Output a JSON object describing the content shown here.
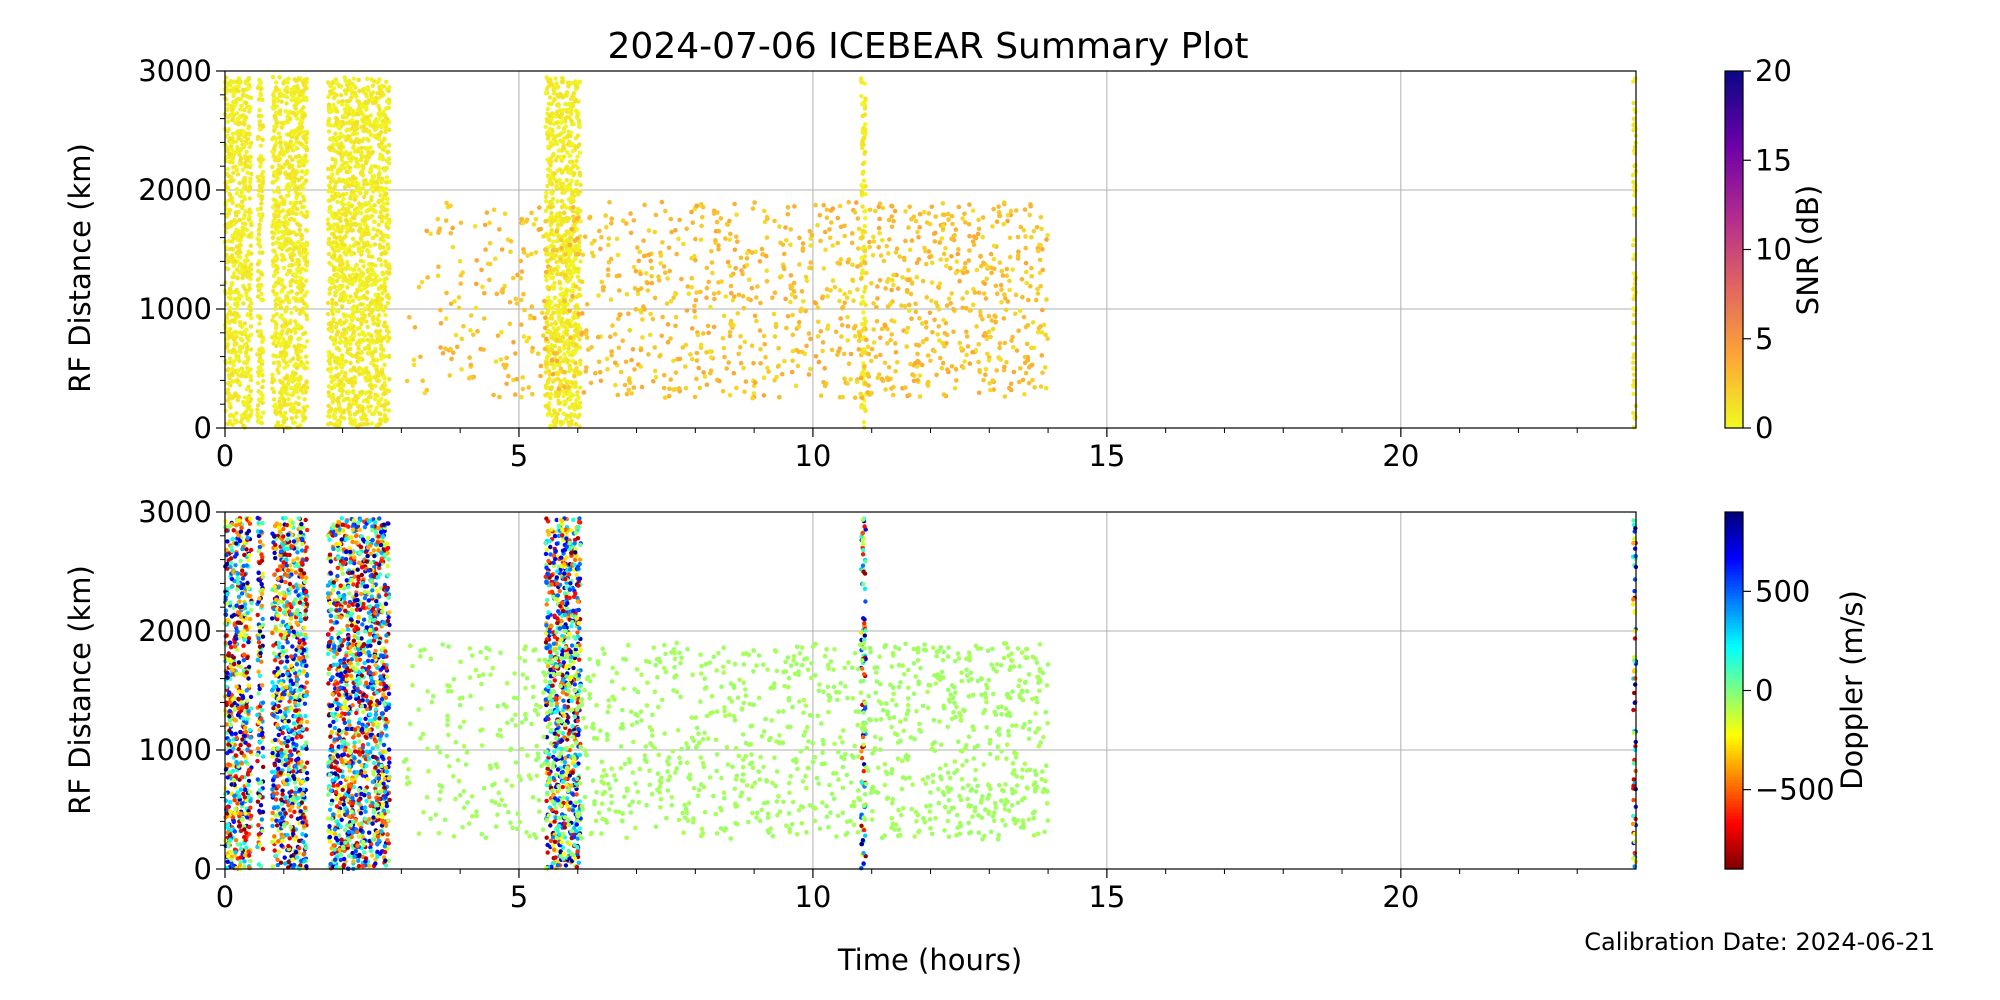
{
  "title": "2024-07-06 ICEBEAR Summary Plot",
  "xlabel": "Time (hours)",
  "footer": "Calibration Date: 2024-06-21",
  "chart_data": [
    {
      "type": "scatter",
      "title": "2024-07-06 ICEBEAR Summary Plot",
      "xlabel": "",
      "ylabel": "RF Distance (km)",
      "xlim": [
        0,
        24
      ],
      "ylim": [
        0,
        3000
      ],
      "xticks": [
        "0",
        "5",
        "10",
        "15",
        "20"
      ],
      "yticks": [
        "0",
        "1000",
        "2000",
        "3000"
      ],
      "grid": true,
      "color_by": "SNR",
      "colorbar": {
        "label": "SNR (dB)",
        "range": [
          0,
          20
        ],
        "ticks": [
          "0",
          "5",
          "10",
          "15",
          "20"
        ],
        "colormap": "plasma_r",
        "colors": [
          "#f0f921",
          "#fca636",
          "#e16462",
          "#b12a90",
          "#6a00a8",
          "#0d0887"
        ]
      },
      "dense_bands": [
        {
          "x": [
            0.0,
            0.45
          ],
          "y": [
            0,
            2950
          ]
        },
        {
          "x": [
            0.55,
            0.65
          ],
          "y": [
            0,
            2950
          ]
        },
        {
          "x": [
            0.8,
            1.4
          ],
          "y": [
            0,
            2950
          ]
        },
        {
          "x": [
            1.75,
            2.8
          ],
          "y": [
            0,
            2950
          ]
        },
        {
          "x": [
            5.45,
            5.85
          ],
          "y": [
            0,
            2950
          ]
        },
        {
          "x": [
            5.85,
            6.05
          ],
          "y": [
            0,
            2950
          ]
        },
        {
          "x": [
            10.82,
            10.9
          ],
          "y": [
            0,
            2950
          ]
        },
        {
          "x": [
            23.95,
            24.0
          ],
          "y": [
            0,
            2950
          ]
        }
      ],
      "scatter_region": {
        "x": [
          3.0,
          14.0
        ],
        "y": [
          250,
          1900
        ],
        "typical_snr_db": 2
      }
    },
    {
      "type": "scatter",
      "title": "",
      "xlabel": "Time (hours)",
      "ylabel": "RF Distance (km)",
      "xlim": [
        0,
        24
      ],
      "ylim": [
        0,
        3000
      ],
      "xticks": [
        "0",
        "5",
        "10",
        "15",
        "20"
      ],
      "yticks": [
        "0",
        "1000",
        "2000",
        "3000"
      ],
      "grid": true,
      "color_by": "Doppler",
      "colorbar": {
        "label": "Doppler (m/s)",
        "range": [
          -900,
          900
        ],
        "ticks": [
          "−500",
          "0",
          "500"
        ],
        "tick_values": [
          -500,
          0,
          500
        ],
        "colormap": "jet_r",
        "colors": [
          "#800000",
          "#ff0000",
          "#ff8000",
          "#ffff00",
          "#80ff80",
          "#00ffff",
          "#0080ff",
          "#0000ff",
          "#000080"
        ]
      },
      "dense_bands": [
        {
          "x": [
            0.0,
            0.45
          ],
          "y": [
            0,
            2950
          ]
        },
        {
          "x": [
            0.55,
            0.65
          ],
          "y": [
            0,
            2950
          ]
        },
        {
          "x": [
            0.8,
            1.4
          ],
          "y": [
            0,
            2950
          ]
        },
        {
          "x": [
            1.75,
            2.8
          ],
          "y": [
            0,
            2950
          ]
        },
        {
          "x": [
            5.45,
            5.85
          ],
          "y": [
            0,
            2950
          ]
        },
        {
          "x": [
            5.85,
            6.05
          ],
          "y": [
            0,
            2950
          ]
        },
        {
          "x": [
            10.82,
            10.9
          ],
          "y": [
            0,
            2950
          ]
        },
        {
          "x": [
            23.95,
            24.0
          ],
          "y": [
            0,
            2950
          ]
        }
      ],
      "scatter_region": {
        "x": [
          3.0,
          14.0
        ],
        "y": [
          250,
          1900
        ],
        "typical_doppler_ms": -60
      }
    }
  ]
}
